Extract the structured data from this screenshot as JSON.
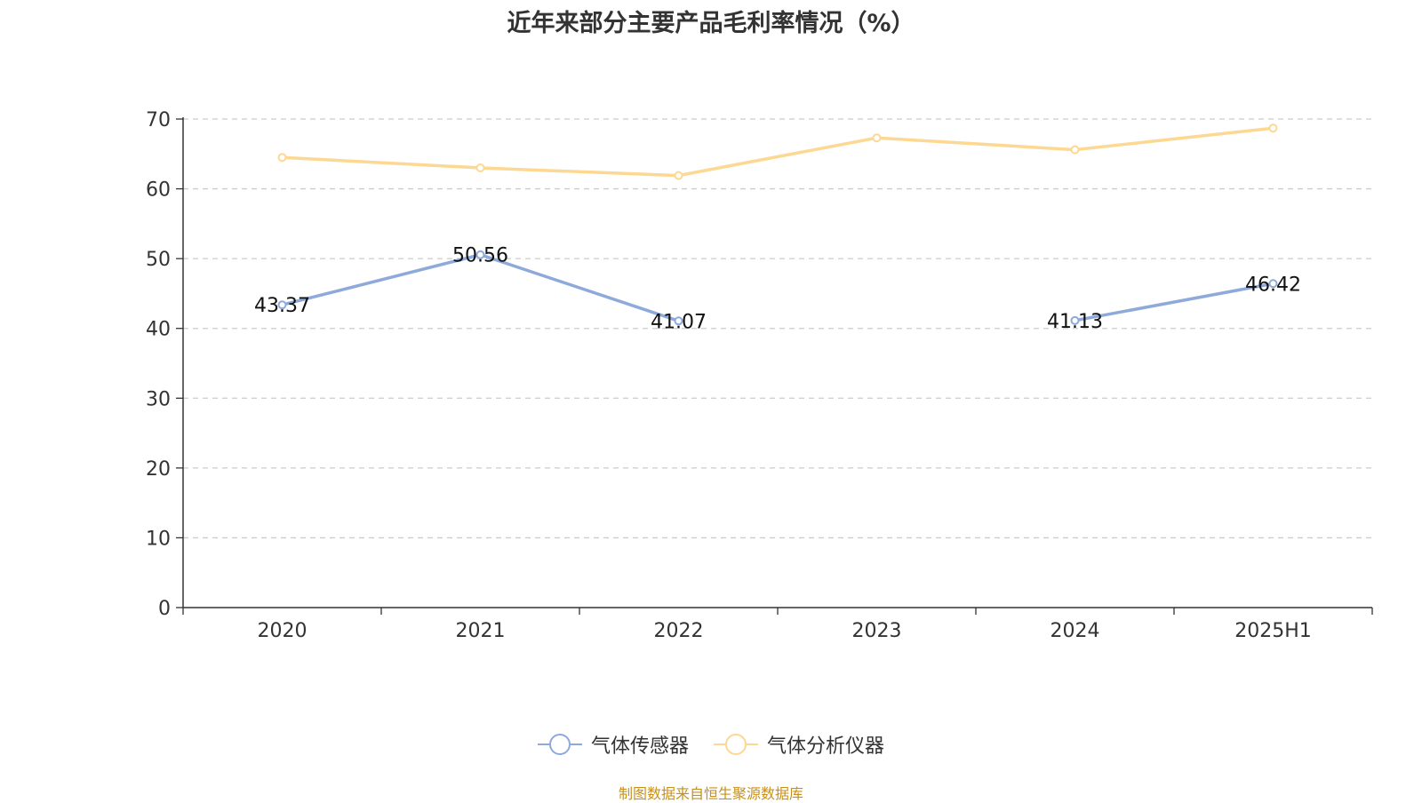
{
  "title": "近年来部分主要产品毛利率情况（%）",
  "source": "制图数据来自恒生聚源数据库",
  "chart_data": {
    "type": "line",
    "categories": [
      "2020",
      "2021",
      "2022",
      "2023",
      "2024",
      "2025H1"
    ],
    "ylim": [
      0,
      70
    ],
    "yticks": [
      0,
      10,
      20,
      30,
      40,
      50,
      60,
      70
    ],
    "grid": true,
    "legend_position": "bottom-center",
    "series": [
      {
        "name": "气体传感器",
        "color": "#8eaadb",
        "values": [
          43.37,
          50.56,
          41.07,
          null,
          41.13,
          46.42
        ],
        "labels": [
          "43.37",
          "50.56",
          "41.07",
          "",
          "41.13",
          "46.42"
        ]
      },
      {
        "name": "气体分析仪器",
        "color": "#fdd892",
        "values": [
          64.5,
          63.0,
          61.9,
          67.3,
          65.6,
          68.7
        ],
        "labels": [
          "",
          "",
          "",
          "",
          "",
          ""
        ]
      }
    ]
  }
}
